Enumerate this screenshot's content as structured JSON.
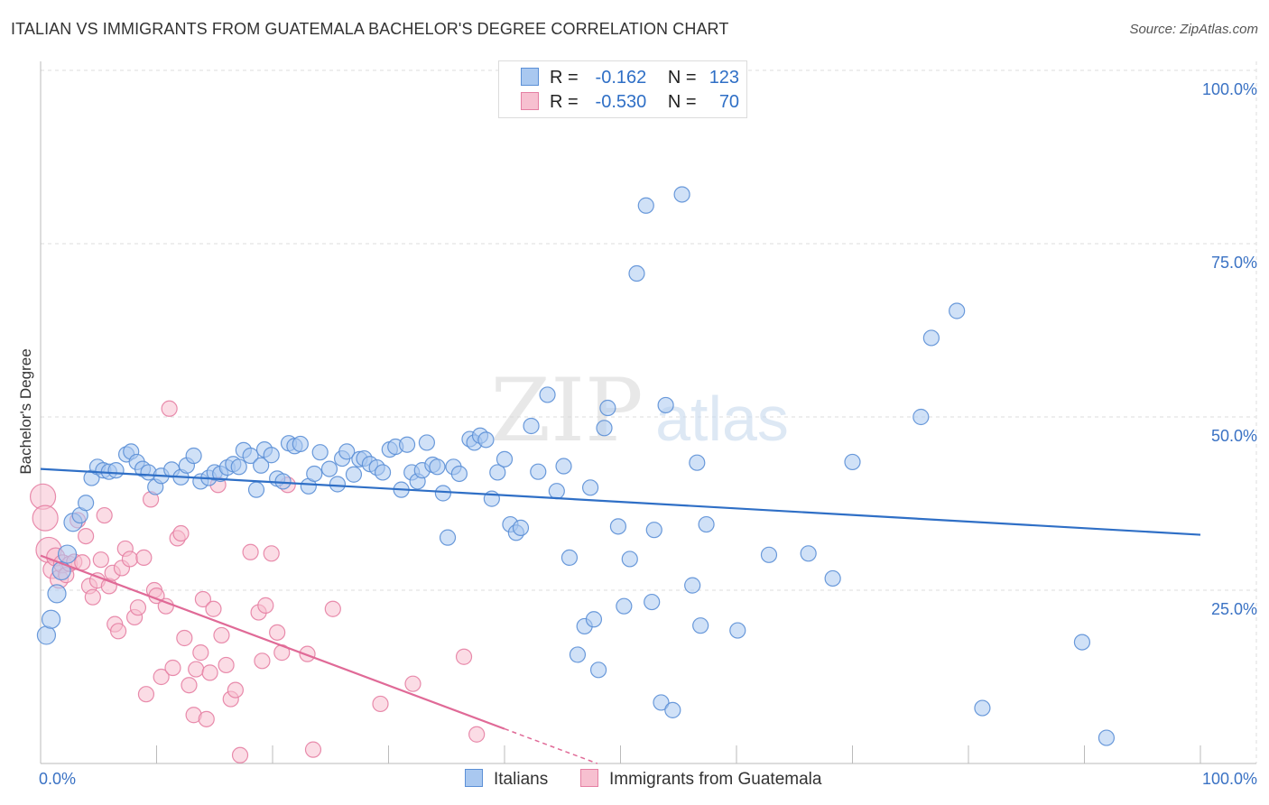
{
  "title": "ITALIAN VS IMMIGRANTS FROM GUATEMALA BACHELOR'S DEGREE CORRELATION CHART",
  "source": "Source: ZipAtlas.com",
  "watermark": {
    "zip": "ZIP",
    "atlas": "atlas"
  },
  "legend": {
    "italians": {
      "r_label": "R =",
      "r_value": "-0.162",
      "n_label": "N =",
      "n_value": "123",
      "color": "#a9c8f0",
      "stroke": "#5b8fd6"
    },
    "guatemala": {
      "r_label": "R =",
      "r_value": "-0.530",
      "n_label": "N =",
      "n_value": "70",
      "color": "#f7c0d0",
      "stroke": "#e57fa3"
    }
  },
  "bottom_legend": {
    "italians": "Italians",
    "guatemala": "Immigrants from Guatemala"
  },
  "chart_data": {
    "type": "scatter",
    "title": "ITALIAN VS IMMIGRANTS FROM GUATEMALA BACHELOR'S DEGREE CORRELATION CHART",
    "xlabel": "",
    "ylabel": "Bachelor's Degree",
    "xlim": [
      0,
      100
    ],
    "ylim": [
      0,
      100
    ],
    "x_tick_labels": [
      "0.0%",
      "100.0%"
    ],
    "y_tick_labels": [
      "25.0%",
      "50.0%",
      "75.0%",
      "100.0%"
    ],
    "y_ticks": [
      25,
      50,
      75,
      100
    ],
    "grid": true,
    "series": [
      {
        "name": "Italians",
        "color": "#5b8fd6",
        "fill": "#a9c8f0",
        "trend": {
          "x0": 0,
          "y0": 42.5,
          "x1": 100,
          "y1": 33.0
        },
        "points": [
          [
            0.5,
            18.5
          ],
          [
            0.9,
            20.8
          ],
          [
            1.4,
            24.5
          ],
          [
            1.8,
            27.8
          ],
          [
            2.3,
            30.2
          ],
          [
            2.8,
            34.8
          ],
          [
            3.4,
            35.8
          ],
          [
            3.9,
            37.6
          ],
          [
            4.4,
            41.2
          ],
          [
            4.9,
            42.8
          ],
          [
            5.4,
            42.3
          ],
          [
            5.9,
            42.1
          ],
          [
            6.5,
            42.3
          ],
          [
            7.4,
            44.6
          ],
          [
            7.8,
            45.0
          ],
          [
            8.3,
            43.5
          ],
          [
            8.8,
            42.5
          ],
          [
            9.3,
            42.0
          ],
          [
            9.9,
            39.9
          ],
          [
            10.4,
            41.5
          ],
          [
            11.3,
            42.4
          ],
          [
            12.1,
            41.3
          ],
          [
            12.6,
            43.0
          ],
          [
            13.2,
            44.4
          ],
          [
            13.8,
            40.7
          ],
          [
            14.5,
            41.2
          ],
          [
            15.0,
            42.0
          ],
          [
            15.5,
            41.8
          ],
          [
            16.1,
            42.7
          ],
          [
            16.6,
            43.2
          ],
          [
            17.1,
            42.8
          ],
          [
            17.5,
            45.2
          ],
          [
            18.1,
            44.4
          ],
          [
            18.6,
            39.5
          ],
          [
            19.0,
            43.0
          ],
          [
            19.3,
            45.3
          ],
          [
            19.9,
            44.5
          ],
          [
            20.4,
            41.1
          ],
          [
            20.9,
            40.7
          ],
          [
            21.4,
            46.2
          ],
          [
            21.9,
            45.8
          ],
          [
            22.4,
            46.1
          ],
          [
            23.1,
            40.0
          ],
          [
            23.6,
            41.8
          ],
          [
            24.1,
            44.9
          ],
          [
            24.9,
            42.5
          ],
          [
            25.6,
            40.3
          ],
          [
            26.0,
            44.0
          ],
          [
            26.4,
            45.0
          ],
          [
            27.0,
            41.7
          ],
          [
            27.5,
            43.9
          ],
          [
            27.9,
            44.0
          ],
          [
            28.4,
            43.2
          ],
          [
            29.0,
            42.7
          ],
          [
            29.5,
            42.0
          ],
          [
            30.1,
            45.3
          ],
          [
            30.6,
            45.7
          ],
          [
            31.1,
            39.5
          ],
          [
            31.6,
            46.0
          ],
          [
            32.0,
            42.0
          ],
          [
            32.5,
            40.7
          ],
          [
            32.9,
            42.3
          ],
          [
            33.3,
            46.3
          ],
          [
            33.8,
            43.1
          ],
          [
            34.2,
            42.8
          ],
          [
            34.7,
            39.0
          ],
          [
            35.1,
            32.6
          ],
          [
            35.6,
            42.8
          ],
          [
            36.1,
            41.8
          ],
          [
            37.0,
            46.8
          ],
          [
            37.4,
            46.3
          ],
          [
            37.9,
            47.3
          ],
          [
            38.4,
            46.7
          ],
          [
            38.9,
            38.2
          ],
          [
            39.4,
            42.0
          ],
          [
            40.0,
            43.9
          ],
          [
            40.5,
            34.5
          ],
          [
            41.0,
            33.3
          ],
          [
            41.4,
            34.0
          ],
          [
            42.3,
            48.7
          ],
          [
            42.9,
            42.1
          ],
          [
            43.7,
            53.2
          ],
          [
            44.5,
            39.3
          ],
          [
            45.1,
            42.9
          ],
          [
            45.6,
            29.7
          ],
          [
            46.3,
            15.7
          ],
          [
            46.9,
            19.8
          ],
          [
            47.4,
            39.8
          ],
          [
            47.7,
            20.8
          ],
          [
            48.1,
            13.5
          ],
          [
            48.6,
            48.4
          ],
          [
            48.9,
            51.3
          ],
          [
            49.8,
            34.2
          ],
          [
            50.3,
            22.7
          ],
          [
            50.8,
            29.5
          ],
          [
            51.4,
            70.7
          ],
          [
            52.2,
            80.5
          ],
          [
            52.7,
            23.3
          ],
          [
            52.9,
            33.7
          ],
          [
            53.5,
            8.8
          ],
          [
            53.9,
            51.7
          ],
          [
            54.5,
            7.7
          ],
          [
            55.3,
            82.1
          ],
          [
            56.2,
            25.7
          ],
          [
            56.6,
            43.4
          ],
          [
            56.9,
            19.9
          ],
          [
            57.4,
            34.5
          ],
          [
            60.1,
            19.2
          ],
          [
            62.8,
            30.1
          ],
          [
            66.2,
            30.3
          ],
          [
            68.3,
            26.7
          ],
          [
            70.0,
            43.5
          ],
          [
            75.9,
            50.0
          ],
          [
            76.8,
            61.4
          ],
          [
            79.0,
            65.3
          ],
          [
            81.2,
            8.0
          ],
          [
            89.8,
            17.5
          ],
          [
            91.9,
            3.7
          ]
        ]
      },
      {
        "name": "Immigrants from Guatemala",
        "color": "#e57fa3",
        "fill": "#f7c0d0",
        "trend": {
          "x0": 0,
          "y0": 30.0,
          "x1": 40,
          "y1": 5.0,
          "dash_to_x": 48
        },
        "points": [
          [
            0.2,
            38.5
          ],
          [
            0.4,
            35.4
          ],
          [
            0.7,
            30.8
          ],
          [
            1.0,
            28.0
          ],
          [
            1.3,
            29.8
          ],
          [
            1.6,
            26.6
          ],
          [
            1.9,
            28.8
          ],
          [
            2.2,
            27.2
          ],
          [
            2.5,
            28.8
          ],
          [
            2.9,
            29.1
          ],
          [
            3.2,
            35.1
          ],
          [
            3.6,
            29.0
          ],
          [
            3.9,
            32.8
          ],
          [
            4.2,
            25.6
          ],
          [
            4.5,
            24.0
          ],
          [
            4.9,
            26.4
          ],
          [
            5.2,
            29.4
          ],
          [
            5.5,
            35.8
          ],
          [
            5.9,
            25.6
          ],
          [
            6.2,
            27.5
          ],
          [
            6.4,
            20.1
          ],
          [
            6.7,
            19.1
          ],
          [
            7.0,
            28.2
          ],
          [
            7.3,
            31.0
          ],
          [
            7.7,
            29.5
          ],
          [
            8.1,
            21.1
          ],
          [
            8.4,
            22.5
          ],
          [
            8.9,
            29.7
          ],
          [
            9.1,
            10.0
          ],
          [
            9.5,
            38.1
          ],
          [
            9.8,
            25.0
          ],
          [
            10.0,
            24.2
          ],
          [
            10.4,
            12.5
          ],
          [
            10.8,
            22.7
          ],
          [
            11.1,
            51.2
          ],
          [
            11.4,
            13.8
          ],
          [
            11.8,
            32.5
          ],
          [
            12.1,
            33.2
          ],
          [
            12.4,
            18.1
          ],
          [
            12.8,
            11.3
          ],
          [
            13.2,
            7.0
          ],
          [
            13.4,
            13.6
          ],
          [
            13.8,
            16.0
          ],
          [
            14.0,
            23.7
          ],
          [
            14.3,
            6.4
          ],
          [
            14.6,
            13.1
          ],
          [
            14.9,
            22.3
          ],
          [
            15.3,
            40.2
          ],
          [
            15.6,
            18.5
          ],
          [
            16.0,
            14.2
          ],
          [
            16.4,
            9.3
          ],
          [
            16.8,
            10.6
          ],
          [
            17.2,
            1.2
          ],
          [
            18.1,
            30.5
          ],
          [
            18.8,
            21.8
          ],
          [
            19.1,
            14.8
          ],
          [
            19.4,
            22.8
          ],
          [
            19.9,
            30.3
          ],
          [
            20.4,
            18.9
          ],
          [
            20.8,
            16.0
          ],
          [
            21.3,
            40.2
          ],
          [
            23.0,
            15.8
          ],
          [
            23.5,
            2.0
          ],
          [
            25.2,
            22.3
          ],
          [
            29.3,
            8.6
          ],
          [
            32.1,
            11.5
          ],
          [
            36.5,
            15.4
          ],
          [
            37.6,
            4.2
          ]
        ]
      }
    ]
  }
}
